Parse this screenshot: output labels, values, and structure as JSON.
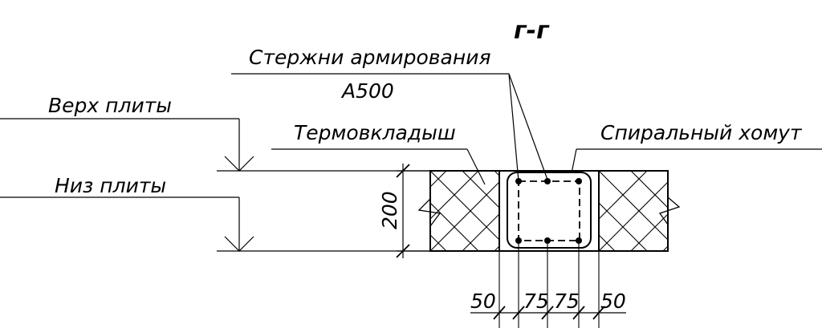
{
  "section_title": "г-г",
  "labels": {
    "rods": "Стержни армирования",
    "rod_class": "А500",
    "top_of_slab": "Верх плиты",
    "bottom_of_slab": "Низ плиты",
    "thermal_insert": "Термовкладыш",
    "spiral_tie": "Спиральный хомут"
  },
  "dimensions": {
    "height": "200",
    "d1": "50",
    "d2": "75",
    "d3": "75",
    "d4": "50"
  }
}
